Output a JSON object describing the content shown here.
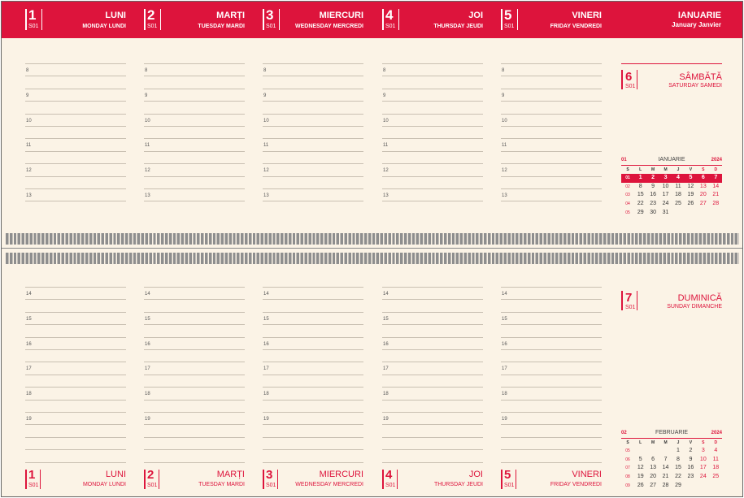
{
  "accent_color": "#dd143c",
  "weekdays": [
    {
      "num": "1",
      "week": "S01",
      "ro": "LUNI",
      "en": "MONDAY LUNDI"
    },
    {
      "num": "2",
      "week": "S01",
      "ro": "MARȚI",
      "en": "TUESDAY MARDI"
    },
    {
      "num": "3",
      "week": "S01",
      "ro": "MIERCURI",
      "en": "WEDNESDAY MERCREDI"
    },
    {
      "num": "4",
      "week": "S01",
      "ro": "JOI",
      "en": "THURSDAY JEUDI"
    },
    {
      "num": "5",
      "week": "S01",
      "ro": "VINERI",
      "en": "FRIDAY VENDREDI"
    }
  ],
  "month_header": {
    "ro": "IANUARIE",
    "en": "January Janvier"
  },
  "hours_top": [
    "8",
    "9",
    "10",
    "11",
    "12",
    "13"
  ],
  "hours_bottom": [
    "14",
    "15",
    "16",
    "17",
    "18",
    "19"
  ],
  "saturday": {
    "num": "6",
    "week": "S01",
    "ro": "SÂMBĂTĂ",
    "en": "SATURDAY SAMEDI"
  },
  "sunday": {
    "num": "7",
    "week": "S01",
    "ro": "DUMINICĂ",
    "en": "SUNDAY DIMANCHE"
  },
  "mini_calendars": [
    {
      "month_num": "01",
      "month_name": "IANUARIE",
      "year": "2024",
      "day_headers": [
        "S",
        "L",
        "M",
        "M",
        "J",
        "V",
        "S",
        "D"
      ],
      "current_week": "01",
      "weeks": [
        {
          "wk": "01",
          "days": [
            "1",
            "2",
            "3",
            "4",
            "5",
            "6",
            "7"
          ]
        },
        {
          "wk": "02",
          "days": [
            "8",
            "9",
            "10",
            "11",
            "12",
            "13",
            "14"
          ]
        },
        {
          "wk": "03",
          "days": [
            "15",
            "16",
            "17",
            "18",
            "19",
            "20",
            "21"
          ]
        },
        {
          "wk": "04",
          "days": [
            "22",
            "23",
            "24",
            "25",
            "26",
            "27",
            "28"
          ]
        },
        {
          "wk": "05",
          "days": [
            "29",
            "30",
            "31",
            "",
            "",
            "",
            ""
          ]
        }
      ]
    },
    {
      "month_num": "02",
      "month_name": "FEBRUARIE",
      "year": "2024",
      "day_headers": [
        "S",
        "L",
        "M",
        "M",
        "J",
        "V",
        "S",
        "D"
      ],
      "current_week": "",
      "weeks": [
        {
          "wk": "05",
          "days": [
            "",
            "",
            "",
            "1",
            "2",
            "3",
            "4"
          ]
        },
        {
          "wk": "06",
          "days": [
            "5",
            "6",
            "7",
            "8",
            "9",
            "10",
            "11"
          ]
        },
        {
          "wk": "07",
          "days": [
            "12",
            "13",
            "14",
            "15",
            "16",
            "17",
            "18"
          ]
        },
        {
          "wk": "08",
          "days": [
            "19",
            "20",
            "21",
            "22",
            "23",
            "24",
            "25"
          ]
        },
        {
          "wk": "09",
          "days": [
            "26",
            "27",
            "28",
            "29",
            "",
            "",
            ""
          ]
        }
      ]
    }
  ]
}
